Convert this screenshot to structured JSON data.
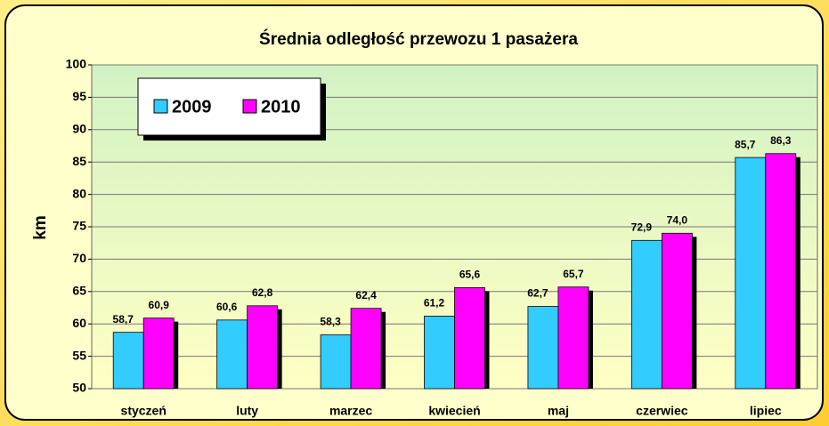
{
  "chart_data": {
    "type": "bar",
    "title": "Średnia odległość przewozu 1 pasażera",
    "y_label": "km",
    "categories": [
      "styczeń",
      "luty",
      "marzec",
      "kwiecień",
      "maj",
      "czerwiec",
      "lipiec"
    ],
    "series": [
      {
        "name": "2009",
        "color": "#33ccff",
        "values": [
          58.7,
          60.6,
          58.3,
          61.2,
          62.7,
          72.9,
          85.7
        ],
        "value_labels": [
          "58,7",
          "60,6",
          "58,3",
          "61,2",
          "62,7",
          "72,9",
          "85,7"
        ]
      },
      {
        "name": "2010",
        "color": "#ff00ff",
        "values": [
          60.9,
          62.8,
          62.4,
          65.6,
          65.7,
          74.0,
          86.3
        ],
        "value_labels": [
          "60,9",
          "62,8",
          "62,4",
          "65,6",
          "65,7",
          "74,0",
          "86,3"
        ]
      }
    ],
    "ylim": [
      50,
      100
    ],
    "yticks": [
      50,
      55,
      60,
      65,
      70,
      75,
      80,
      85,
      90,
      95,
      100
    ],
    "grid": true,
    "legend": "upper left"
  }
}
